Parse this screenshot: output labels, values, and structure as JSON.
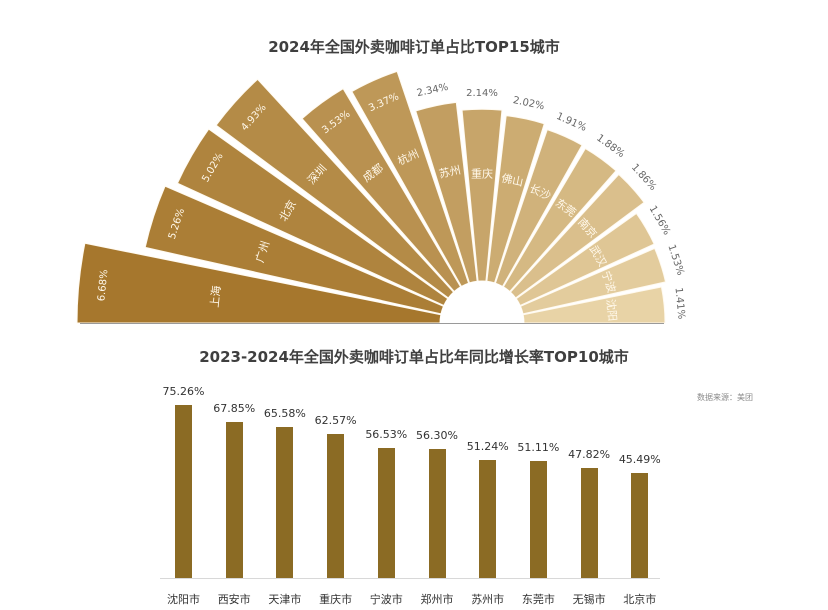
{
  "titles": {
    "chart1": "2024年全国外卖咖啡订单占比TOP15城市",
    "chart2": "2023-2024年全国外卖咖啡订单占比年同比增长率TOP10城市"
  },
  "source": "数据来源：美团",
  "colors": {
    "fan_dark": "#a6772d",
    "fan_light": "#e8d3a6",
    "bar": "#8b6b24",
    "title": "#3f3f3f",
    "label_outside": "#666666"
  },
  "chart_data": [
    {
      "type": "pie",
      "subtype": "nightingale-rose-half",
      "title": "2024年全国外卖咖啡订单占比TOP15城市",
      "categories": [
        "上海",
        "广州",
        "北京",
        "深圳",
        "成都",
        "杭州",
        "苏州",
        "重庆",
        "佛山",
        "长沙",
        "东莞",
        "南京",
        "武汉",
        "宁波",
        "沈阳"
      ],
      "values": [
        6.68,
        5.26,
        5.02,
        4.93,
        3.53,
        3.37,
        2.34,
        2.14,
        2.02,
        1.91,
        1.88,
        1.86,
        1.56,
        1.53,
        1.41
      ],
      "labels": [
        "6.68%",
        "5.26%",
        "5.02%",
        "4.93%",
        "3.53%",
        "3.37%",
        "2.34%",
        "2.14%",
        "2.02%",
        "1.91%",
        "1.88%",
        "1.86%",
        "1.56%",
        "1.53%",
        "1.41%"
      ],
      "unit": "%"
    },
    {
      "type": "bar",
      "title": "2023-2024年全国外卖咖啡订单占比年同比增长率TOP10城市",
      "categories": [
        "沈阳市",
        "西安市",
        "天津市",
        "重庆市",
        "宁波市",
        "郑州市",
        "苏州市",
        "东莞市",
        "无锡市",
        "北京市"
      ],
      "values": [
        75.26,
        67.85,
        65.58,
        62.57,
        56.53,
        56.3,
        51.24,
        51.11,
        47.82,
        45.49
      ],
      "labels": [
        "75.26%",
        "67.85%",
        "65.58%",
        "62.57%",
        "56.53%",
        "56.30%",
        "51.24%",
        "51.11%",
        "47.82%",
        "45.49%"
      ],
      "xlabel": "",
      "ylabel": "",
      "grid": false,
      "annotation": "数据来源：美团"
    }
  ]
}
